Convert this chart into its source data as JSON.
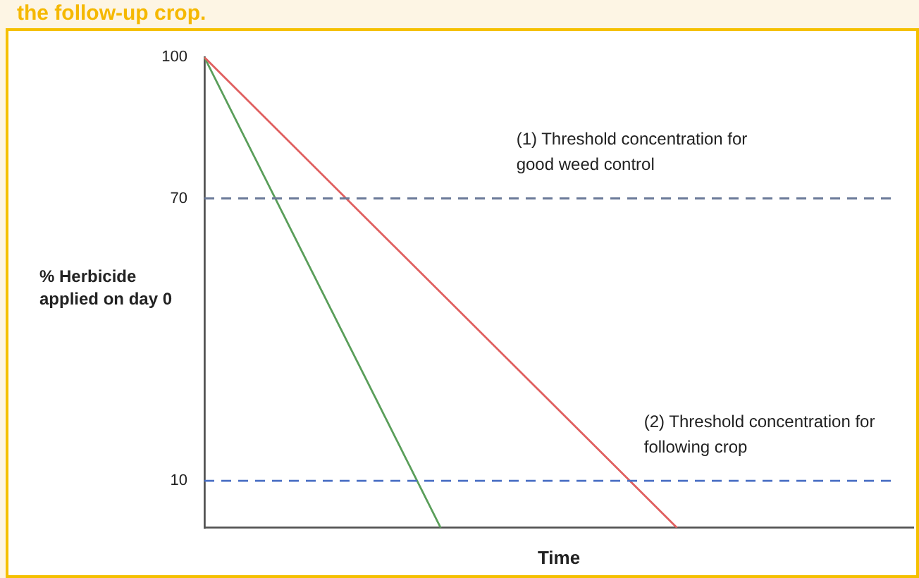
{
  "chart_data": {
    "type": "line",
    "title": "the follow-up crop.",
    "xlabel": "Time",
    "ylabel": "% Herbicide applied on day 0",
    "categories": [
      null,
      null,
      null,
      null
    ],
    "ylim": [
      0,
      100
    ],
    "yticks": [
      10,
      70,
      100
    ],
    "tick_labels": "y",
    "grid": false,
    "legend": false,
    "marker": "none",
    "line_style": "solid",
    "series": [
      {
        "color": "#e06060",
        "values": [
          100,
          50,
          0,
          null
        ]
      },
      {
        "color": "#5a9e5a",
        "values": [
          100,
          0,
          null,
          null
        ]
      }
    ],
    "ref_lines": [
      {
        "axis": "y",
        "value": 70,
        "label": "(1) Threshold concentration for good weed control",
        "color": "#6b7a99",
        "line_style": "dashed"
      },
      {
        "axis": "y",
        "value": 10,
        "label": "(2) Threshold concentration for following crop",
        "color": "#4a6fc4",
        "line_style": "dashed"
      }
    ]
  }
}
